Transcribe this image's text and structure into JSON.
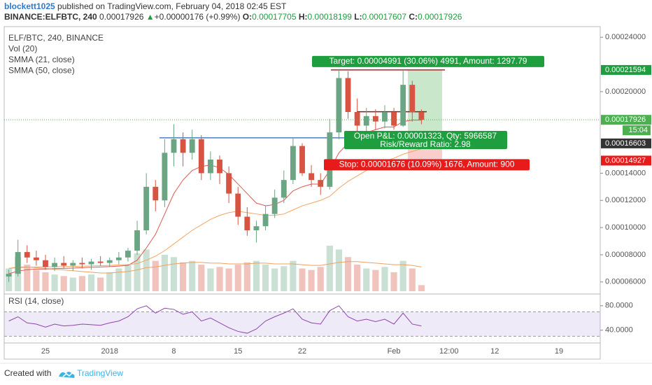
{
  "header": {
    "author": "blockett1025",
    "published": "published on TradingView.com, February 04, 2018 02:45 EST",
    "symbol": "BINANCE:ELFBTC, 240",
    "last": "0.00017926",
    "arrow": "▲",
    "change": "+0.00000176 (+0.99%)",
    "o_label": "O:",
    "o": "0.00017705",
    "h_label": "H:",
    "h": "0.00018199",
    "l_label": "L:",
    "l": "0.00017607",
    "c_label": "C:",
    "c": "0.00017926"
  },
  "footer": {
    "created": "Created with",
    "brand": "TradingView"
  },
  "chart_data": {
    "type": "candlestick",
    "legend": [
      "ELF/BTC, 240, BINANCE",
      "Vol (20)",
      "SMMA (21, close)",
      "SMMA (50, close)"
    ],
    "up_color": "#6ba583",
    "down_color": "#d75442",
    "categories": [
      null,
      null,
      null,
      null,
      "25",
      null,
      null,
      null,
      null,
      null,
      null,
      "2018",
      null,
      null,
      null,
      null,
      null,
      null,
      "8",
      null,
      null,
      null,
      null,
      null,
      null,
      "15",
      null,
      null,
      null,
      null,
      null,
      null,
      "22",
      null,
      null,
      null,
      null,
      null,
      null,
      null,
      null,
      null,
      "Feb",
      null,
      null,
      null,
      null,
      null,
      "12:00",
      null,
      null,
      null,
      null,
      "12",
      null,
      null,
      null,
      null,
      null,
      null,
      "19",
      null,
      null,
      null,
      null
    ],
    "candles": [
      [
        6.4e-05,
        6.9e-05,
        6e-05,
        6.6e-05
      ],
      [
        6.6e-05,
        9.1e-05,
        6.4e-05,
        8.2e-05
      ],
      [
        8.2e-05,
        8.7e-05,
        7.4e-05,
        7.8e-05
      ],
      [
        7.8e-05,
        8.3e-05,
        7.2e-05,
        7.6e-05
      ],
      [
        7.6e-05,
        8e-05,
        6.9e-05,
        7.1e-05
      ],
      [
        7.1e-05,
        7.8e-05,
        6.8e-05,
        7.4e-05
      ],
      [
        7.4e-05,
        7.9e-05,
        7e-05,
        7.2e-05
      ],
      [
        7.2e-05,
        7.6e-05,
        6.8e-05,
        7.4e-05
      ],
      [
        7.4e-05,
        7.8e-05,
        7e-05,
        7.3e-05
      ],
      [
        7.3e-05,
        7.7e-05,
        6.9e-05,
        7.5e-05
      ],
      [
        7.5e-05,
        7.9e-05,
        7.2e-05,
        7.4e-05
      ],
      [
        7.4e-05,
        7.8e-05,
        7.1e-05,
        7.6e-05
      ],
      [
        7.6e-05,
        8.2e-05,
        7.3e-05,
        7.8e-05
      ],
      [
        7.8e-05,
        8.5e-05,
        7.5e-05,
        8.3e-05
      ],
      [
        8.3e-05,
        0.000105,
        8e-05,
        9.8e-05
      ],
      [
        9.8e-05,
        0.00014,
        9.5e-05,
        0.00013
      ],
      [
        0.00013,
        0.000135,
        0.000112,
        0.00012
      ],
      [
        0.00012,
        0.000165,
        0.000115,
        0.000155
      ],
      [
        0.000155,
        0.000176,
        0.000145,
        0.000165
      ],
      [
        0.000165,
        0.00017,
        0.000145,
        0.000155
      ],
      [
        0.000155,
        0.000172,
        0.00015,
        0.000165
      ],
      [
        0.000165,
        0.000168,
        0.000135,
        0.00014
      ],
      [
        0.00014,
        0.000156,
        0.000135,
        0.00015
      ],
      [
        0.00015,
        0.000153,
        0.000132,
        0.00014
      ],
      [
        0.00014,
        0.000145,
        0.000118,
        0.000125
      ],
      [
        0.000125,
        0.00013,
        0.000102,
        0.000108
      ],
      [
        0.000108,
        0.000115,
        9.4e-05,
        9.8e-05
      ],
      [
        9.8e-05,
        0.000105,
        8.9e-05,
        0.000101
      ],
      [
        0.000101,
        0.000116,
        9.8e-05,
        0.00011
      ],
      [
        0.00011,
        0.000128,
        0.000107,
        0.000122
      ],
      [
        0.000122,
        0.000142,
        0.000118,
        0.000135
      ],
      [
        0.000135,
        0.000166,
        0.000132,
        0.00016
      ],
      [
        0.00016,
        0.000162,
        0.000138,
        0.00014
      ],
      [
        0.00014,
        0.000146,
        0.00013,
        0.000135
      ],
      [
        0.000135,
        0.00014,
        0.000124,
        0.00013
      ],
      [
        0.00013,
        0.00018,
        0.000128,
        0.00017
      ],
      [
        0.00017,
        0.000216,
        0.000165,
        0.00021
      ],
      [
        0.00021,
        0.000215,
        0.00018,
        0.000185
      ],
      [
        0.000185,
        0.000195,
        0.00017,
        0.000175
      ],
      [
        0.000175,
        0.000188,
        0.00017,
        0.000182
      ],
      [
        0.000182,
        0.000187,
        0.000172,
        0.000178
      ],
      [
        0.000178,
        0.00019,
        0.000173,
        0.000185
      ],
      [
        0.000185,
        0.000188,
        0.000172,
        0.000175
      ],
      [
        0.000175,
        0.000216,
        0.000174,
        0.000205
      ],
      [
        0.000205,
        0.000208,
        0.000178,
        0.000185
      ],
      [
        0.000185,
        0.000187,
        0.000176,
        0.0001793
      ],
      null,
      null,
      null,
      null,
      null,
      null,
      null,
      null,
      null,
      null,
      null,
      null,
      null,
      null,
      null,
      null,
      null,
      null,
      null
    ],
    "volume": [
      30,
      45,
      35,
      28,
      25,
      22,
      20,
      18,
      20,
      22,
      18,
      25,
      30,
      35,
      50,
      55,
      40,
      48,
      45,
      38,
      40,
      35,
      30,
      32,
      30,
      35,
      38,
      40,
      35,
      30,
      33,
      40,
      30,
      28,
      32,
      60,
      55,
      45,
      35,
      30,
      28,
      32,
      25,
      40,
      30,
      8,
      null,
      null,
      null,
      null,
      null,
      null,
      null,
      null,
      null,
      null,
      null,
      null,
      null,
      null,
      null,
      null,
      null,
      null,
      null
    ],
    "volume_ma": {
      "color": "#f0a060",
      "values": [
        30,
        32,
        32,
        31,
        30,
        29,
        28,
        27,
        26,
        25,
        24,
        24,
        25,
        26,
        28,
        31,
        32,
        34,
        36,
        37,
        38,
        38,
        37,
        37,
        36,
        36,
        36,
        37,
        37,
        36,
        36,
        36,
        35,
        34,
        34,
        36,
        38,
        39,
        39,
        38,
        37,
        36,
        35,
        35,
        34,
        32,
        null,
        null,
        null,
        null,
        null,
        null,
        null,
        null,
        null,
        null,
        null,
        null,
        null,
        null,
        null,
        null,
        null,
        null,
        null
      ]
    },
    "series": [
      {
        "name": "SMMA (21, close)",
        "color": "#e0574f",
        "values": [
          6.6e-05,
          6.8e-05,
          6.9e-05,
          6.95e-05,
          6.95e-05,
          6.98e-05,
          7e-05,
          7.02e-05,
          7.05e-05,
          7.08e-05,
          7.1e-05,
          7.13e-05,
          7.17e-05,
          7.22e-05,
          7.6e-05,
          8.5e-05,
          9.5e-05,
          0.00011,
          0.000125,
          0.000135,
          0.000142,
          0.000145,
          0.000146,
          0.000144,
          0.000139,
          0.000132,
          0.000125,
          0.000118,
          0.000116,
          0.000117,
          0.00012,
          0.000127,
          0.00013,
          0.000132,
          0.000132,
          0.000142,
          0.000155,
          0.000162,
          0.000166,
          0.00017,
          0.000172,
          0.000174,
          0.000174,
          0.000178,
          0.000179,
          0.000179,
          null,
          null,
          null,
          null,
          null,
          null,
          null,
          null,
          null,
          null,
          null,
          null,
          null,
          null,
          null,
          null,
          null,
          null,
          null
        ]
      },
      {
        "name": "SMMA (50, close)",
        "color": "#f4a460",
        "values": [
          7e-05,
          7.05e-05,
          7.08e-05,
          7.1e-05,
          7.1e-05,
          7.12e-05,
          7.13e-05,
          7.14e-05,
          7.16e-05,
          7.18e-05,
          7.2e-05,
          7.22e-05,
          7.25e-05,
          7.28e-05,
          7.35e-05,
          7.6e-05,
          7.9e-05,
          8.3e-05,
          8.8e-05,
          9.3e-05,
          9.8e-05,
          0.000102,
          0.000106,
          0.000109,
          0.000111,
          0.000112,
          0.000111,
          0.00011,
          0.000109,
          0.000109,
          0.00011,
          0.000113,
          0.000116,
          0.000118,
          0.00012,
          0.000123,
          0.000129,
          0.000134,
          0.000138,
          0.000142,
          0.000146,
          0.000149,
          0.000151,
          0.000154,
          0.000156,
          0.000158,
          null,
          null,
          null,
          null,
          null,
          null,
          null,
          null,
          null,
          null,
          null,
          null,
          null,
          null,
          null,
          null,
          null,
          null,
          null
        ]
      }
    ],
    "ylim": [
      5.32e-05,
      0.0002468
    ],
    "yticks": [
      {
        "value": 6e-05,
        "label": "0.00006000"
      },
      {
        "value": 8e-05,
        "label": "0.00008000"
      },
      {
        "value": 0.0001,
        "label": "0.00010000"
      },
      {
        "value": 0.00012,
        "label": "0.00012000"
      },
      {
        "value": 0.00014,
        "label": "0.00014000"
      },
      {
        "value": 0.0002,
        "label": "0.00020000"
      },
      {
        "value": 0.00024,
        "label": "0.00024000"
      }
    ],
    "price_labels": [
      {
        "value": 0.00021594,
        "color": "#1e9e3e"
      },
      {
        "value": 0.00017926,
        "color": "#4caf50"
      },
      {
        "value": 0.00016603,
        "color": "#333333"
      },
      {
        "value": 0.00014927,
        "color": "#e81b1b"
      }
    ],
    "countdown": "15:04",
    "lines": [
      {
        "value": 0.000166,
        "color": "#4a7fc1"
      },
      {
        "value": 0.0001852,
        "color": "#8b1a1a"
      },
      {
        "value": 0.00021594,
        "color": "#b22222"
      }
    ],
    "position": {
      "target": 0.00021594,
      "entry": 0.00016603,
      "stop": 0.00014927
    },
    "annotations": {
      "target": "Target: 0.00004991 (30.06%) 4991, Amount: 1297.79",
      "pnl": "Open P&L: 0.00001323, Qty: 5966587",
      "rr": "Risk/Reward Ratio: 2.98",
      "stop": "Stop: 0.00001676 (10.09%) 1676, Amount: 900"
    },
    "rsi": {
      "name": "RSI (14, close)",
      "color": "#8e44ad",
      "band": [
        30,
        70
      ],
      "ylim": [
        19,
        97
      ],
      "yticks": [
        {
          "value": 80,
          "label": "80.0000"
        },
        {
          "value": 40,
          "label": "40.0000"
        }
      ],
      "values": [
        55,
        62,
        52,
        50,
        45,
        50,
        47,
        48,
        50,
        49,
        48,
        52,
        55,
        62,
        75,
        80,
        68,
        76,
        74,
        66,
        70,
        55,
        60,
        52,
        44,
        38,
        35,
        42,
        55,
        62,
        68,
        75,
        58,
        52,
        50,
        72,
        80,
        62,
        55,
        58,
        54,
        58,
        50,
        68,
        50,
        47,
        null,
        null,
        null,
        null,
        null,
        null,
        null,
        null,
        null,
        null,
        null,
        null,
        null,
        null,
        null,
        null,
        null,
        null,
        null
      ]
    }
  }
}
